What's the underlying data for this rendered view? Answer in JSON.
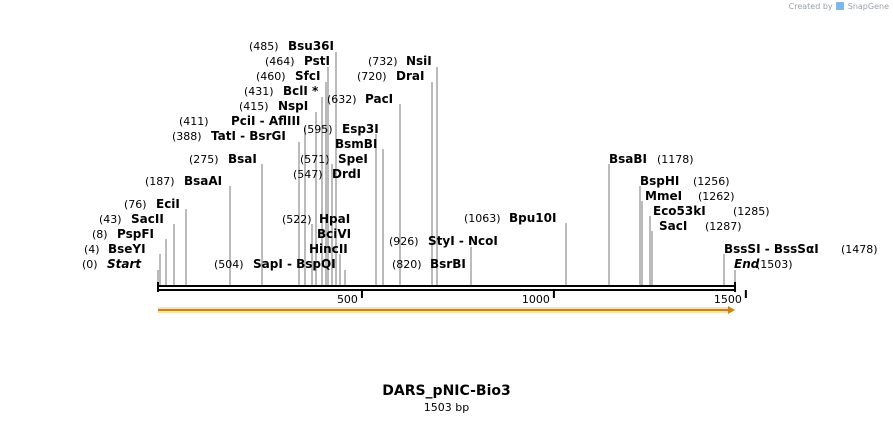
{
  "header": {
    "credit_text": "Created by",
    "brand": "SnapGene"
  },
  "sequence": {
    "name": "DARS_pNIC-Bio3",
    "length_label": "1503 bp",
    "length": 1503
  },
  "ruler": {
    "ticks": [
      {
        "pos": 500,
        "label": "500"
      },
      {
        "pos": 1000,
        "label": "1000"
      },
      {
        "pos": 1500,
        "label": "1500"
      }
    ]
  },
  "colors": {
    "line": "#000000",
    "feature": "#f5a623",
    "feature_outline": "#c9841a",
    "leader": "#777777"
  },
  "features": [
    {
      "name": "orange-arrow",
      "start": 1,
      "end": 1503,
      "direction": "forward"
    }
  ],
  "sites": [
    {
      "pos_label": "(485)",
      "name": "Bsu36I",
      "cut": 485,
      "italic": false
    },
    {
      "pos_label": "(464)",
      "name": "PstI",
      "cut": 464,
      "italic": false
    },
    {
      "pos_label": "(460)",
      "name": "SfcI",
      "cut": 460,
      "italic": false
    },
    {
      "pos_label": "(431)",
      "name": "BclI *",
      "cut": 431,
      "italic": false
    },
    {
      "pos_label": "(415)",
      "name": "NspI",
      "cut": 415,
      "italic": false
    },
    {
      "pos_label": "(411)",
      "name": "PciI  -  AflIII",
      "cut": 411,
      "italic": false
    },
    {
      "pos_label": "(388)",
      "name": "TatI  -  BsrGI",
      "cut": 388,
      "italic": false
    },
    {
      "pos_label": "(275)",
      "name": "BsaI",
      "cut": 275,
      "italic": false
    },
    {
      "pos_label": "(187)",
      "name": "BsaAI",
      "cut": 187,
      "italic": false
    },
    {
      "pos_label": "(76)",
      "name": "EciI",
      "cut": 76,
      "italic": false
    },
    {
      "pos_label": "(43)",
      "name": "SacII",
      "cut": 43,
      "italic": false
    },
    {
      "pos_label": "(8)",
      "name": "PspFI",
      "cut": 8,
      "italic": false
    },
    {
      "pos_label": "(4)",
      "name": "BseYI",
      "cut": 4,
      "italic": false
    },
    {
      "pos_label": "(0)",
      "name": "Start",
      "cut": 0,
      "italic": true
    },
    {
      "pos_label": "(504)",
      "name": "SapI  -  BspQI",
      "cut": 504,
      "italic": false
    },
    {
      "pos_label": "(522)",
      "name": "HpaI",
      "cut": 522,
      "italic": false
    },
    {
      "pos_label": "",
      "name": "BciVI",
      "cut": 530,
      "italic": false
    },
    {
      "pos_label": "",
      "name": "HincII",
      "cut": 522,
      "italic": false
    },
    {
      "pos_label": "(547)",
      "name": "DrdI",
      "cut": 547,
      "italic": false
    },
    {
      "pos_label": "(571)",
      "name": "SpeI",
      "cut": 571,
      "italic": false
    },
    {
      "pos_label": "",
      "name": "BsmBI",
      "cut": 590,
      "italic": false
    },
    {
      "pos_label": "(595)",
      "name": "Esp3I",
      "cut": 595,
      "italic": false
    },
    {
      "pos_label": "(632)",
      "name": "PacI",
      "cut": 632,
      "italic": false
    },
    {
      "pos_label": "(720)",
      "name": "DraI",
      "cut": 720,
      "italic": false
    },
    {
      "pos_label": "(732)",
      "name": "NsiI",
      "cut": 732,
      "italic": false
    },
    {
      "pos_label": "(926)",
      "name": "StyI  -  NcoI",
      "cut": 926,
      "italic": false
    },
    {
      "pos_label": "(820)",
      "name": "BsrBI",
      "cut": 820,
      "italic": false
    },
    {
      "pos_label": "(1063)",
      "name": "Bpu10I",
      "cut": 1063,
      "italic": false
    },
    {
      "pos_label": "(1178)",
      "name": "BsaBI",
      "cut": 1178,
      "italic": false
    },
    {
      "pos_label": "(1256)",
      "name": "BspHI",
      "cut": 1256,
      "italic": false
    },
    {
      "pos_label": "(1262)",
      "name": "MmeI",
      "cut": 1262,
      "italic": false
    },
    {
      "pos_label": "(1285)",
      "name": "Eco53kI",
      "cut": 1285,
      "italic": false
    },
    {
      "pos_label": "(1287)",
      "name": "SacI",
      "cut": 1287,
      "italic": false
    },
    {
      "pos_label": "(1478)",
      "name": "BssSI  -  BssSαI",
      "cut": 1478,
      "italic": false
    },
    {
      "pos_label": "(1503)",
      "name": "End",
      "cut": 1503,
      "italic": true
    }
  ]
}
